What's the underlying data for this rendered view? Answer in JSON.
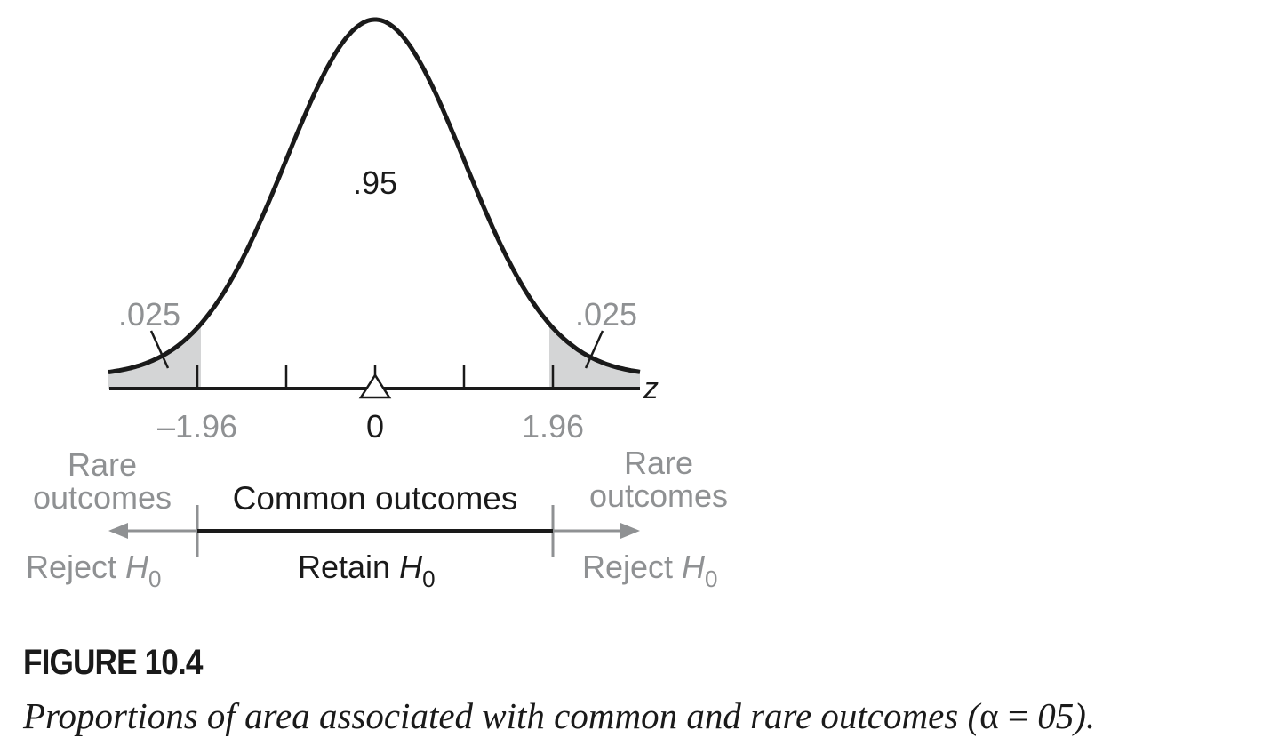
{
  "figure": {
    "label": "FIGURE 10.4",
    "caption_prefix": "Proportions of area associated with common and rare outcomes (",
    "caption_alpha": "α",
    "caption_eq": " = ",
    "caption_suffix": "05)."
  },
  "chart_data": {
    "type": "area",
    "distribution": "normal",
    "axis_label": "z",
    "tick_labels": [
      "–1.96",
      "0",
      "1.96"
    ],
    "critical_values": [
      -1.96,
      1.96
    ],
    "mean": 0,
    "regions": [
      {
        "name": "left-tail",
        "proportion": ".025",
        "shaded": true
      },
      {
        "name": "center",
        "proportion": ".95",
        "shaded": false
      },
      {
        "name": "right-tail",
        "proportion": ".025",
        "shaded": true
      }
    ]
  },
  "labels": {
    "center_area": ".95",
    "left_tail_area": ".025",
    "right_tail_area": ".025",
    "axis_z": "z",
    "tick_neg": "–1.96",
    "tick_zero": "0",
    "tick_pos": "1.96",
    "rare_left_1": "Rare",
    "rare_left_2": "outcomes",
    "rare_right_1": "Rare",
    "rare_right_2": "outcomes",
    "common": "Common outcomes",
    "reject_left": "Reject ",
    "reject_right": "Reject ",
    "retain": "Retain ",
    "h_symbol": "H",
    "h_sub": "0"
  },
  "colors": {
    "curve": "#1a1a1a",
    "shade": "#d4d5d6",
    "gray_text": "#8f9193",
    "black_text": "#1a1a1a"
  }
}
